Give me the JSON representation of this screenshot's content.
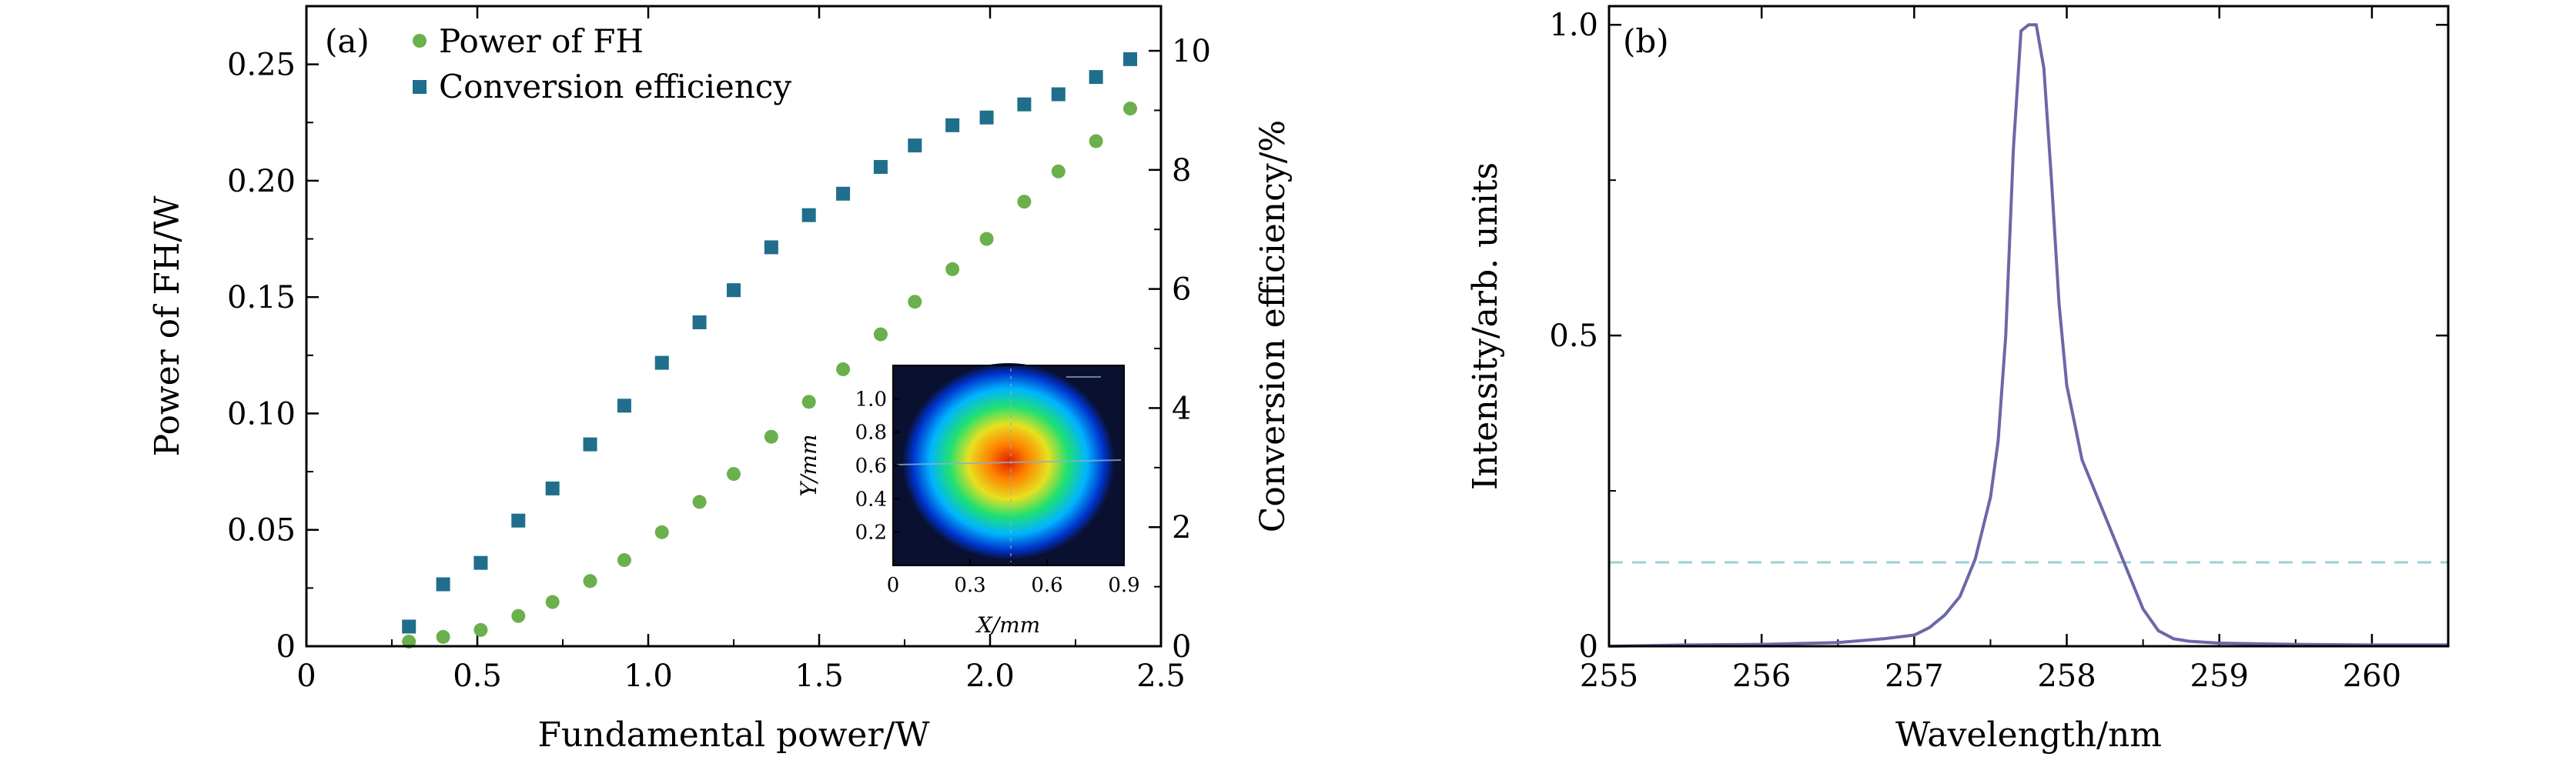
{
  "chart_data": [
    {
      "type": "scatter",
      "panel_label": "(a)",
      "xlabel": "Fundamental power/W",
      "ylabel": "Power of FH/W",
      "y2label": "Conversion efficiency/%",
      "xlim": [
        0,
        2.5
      ],
      "ylim": [
        0,
        0.275
      ],
      "y2lim": [
        0,
        10.75
      ],
      "x_ticks": [
        "0",
        "0.5",
        "1.0",
        "1.5",
        "2.0",
        "2.5"
      ],
      "y_ticks": [
        "0",
        "0.05",
        "0.10",
        "0.15",
        "0.20",
        "0.25"
      ],
      "y2_ticks": [
        "0",
        "2",
        "4",
        "6",
        "8",
        "10"
      ],
      "legend_position": "top-left",
      "series": [
        {
          "name": "Power of FH",
          "axis": "left",
          "marker": "circle",
          "color": "#6ab04c",
          "x": [
            0.3,
            0.4,
            0.51,
            0.62,
            0.72,
            0.83,
            0.93,
            1.04,
            1.15,
            1.25,
            1.36,
            1.47,
            1.57,
            1.68,
            1.78,
            1.89,
            1.99,
            2.1,
            2.2,
            2.31,
            2.41
          ],
          "y": [
            0.002,
            0.004,
            0.007,
            0.013,
            0.019,
            0.028,
            0.037,
            0.049,
            0.062,
            0.074,
            0.09,
            0.105,
            0.119,
            0.134,
            0.148,
            0.162,
            0.175,
            0.191,
            0.204,
            0.217,
            0.231
          ]
        },
        {
          "name": "Conversion efficiency",
          "axis": "right",
          "marker": "square",
          "color": "#1f6e8c",
          "x": [
            0.3,
            0.4,
            0.51,
            0.62,
            0.72,
            0.83,
            0.93,
            1.04,
            1.15,
            1.25,
            1.36,
            1.47,
            1.57,
            1.68,
            1.78,
            1.89,
            1.99,
            2.1,
            2.2,
            2.31,
            2.41
          ],
          "y": [
            0.33,
            1.04,
            1.4,
            2.11,
            2.65,
            3.39,
            4.04,
            4.76,
            5.44,
            5.98,
            6.7,
            7.24,
            7.6,
            8.05,
            8.41,
            8.75,
            8.88,
            9.1,
            9.27,
            9.56,
            9.86
          ]
        }
      ],
      "inset": {
        "type": "heatmap",
        "xlabel": "X/mm",
        "ylabel": "Y/mm",
        "xlim": [
          0,
          0.9
        ],
        "ylim": [
          0,
          1.2
        ],
        "x_ticks": [
          "0",
          "0.3",
          "0.6",
          "0.9"
        ],
        "y_ticks": [
          "0.2",
          "0.4",
          "0.6",
          "0.8",
          "1.0"
        ],
        "beam_center": [
          0.45,
          0.6
        ],
        "colors": [
          "#0a1030",
          "#0033cc",
          "#00b4ff",
          "#20e070",
          "#e8e020",
          "#ff8000",
          "#e02000"
        ]
      }
    },
    {
      "type": "line",
      "panel_label": "(b)",
      "xlabel": "Wavelength/nm",
      "ylabel": "Intensity/arb. units",
      "xlim": [
        255,
        260.5
      ],
      "ylim": [
        0,
        1.03
      ],
      "x_ticks": [
        "255",
        "256",
        "257",
        "258",
        "259",
        "260"
      ],
      "y_ticks": [
        "0",
        "0.5",
        "1.0"
      ],
      "reference_line_y": 0.135,
      "reference_line_color": "#9ecfd6",
      "series": [
        {
          "color": "#6b68a8",
          "x": [
            255.0,
            255.5,
            256.0,
            256.5,
            256.8,
            257.0,
            257.1,
            257.2,
            257.3,
            257.4,
            257.5,
            257.55,
            257.6,
            257.65,
            257.7,
            257.75,
            257.8,
            257.85,
            257.9,
            257.95,
            258.0,
            258.05,
            258.1,
            258.15,
            258.2,
            258.3,
            258.4,
            258.5,
            258.6,
            258.7,
            258.8,
            259.0,
            259.5,
            260.0,
            260.5
          ],
          "y": [
            0.0,
            0.002,
            0.003,
            0.006,
            0.012,
            0.018,
            0.03,
            0.05,
            0.08,
            0.14,
            0.24,
            0.33,
            0.5,
            0.8,
            0.99,
            1.0,
            1.0,
            0.93,
            0.75,
            0.55,
            0.42,
            0.36,
            0.3,
            0.27,
            0.24,
            0.18,
            0.12,
            0.06,
            0.025,
            0.012,
            0.008,
            0.005,
            0.003,
            0.002,
            0.002
          ]
        }
      ]
    }
  ]
}
